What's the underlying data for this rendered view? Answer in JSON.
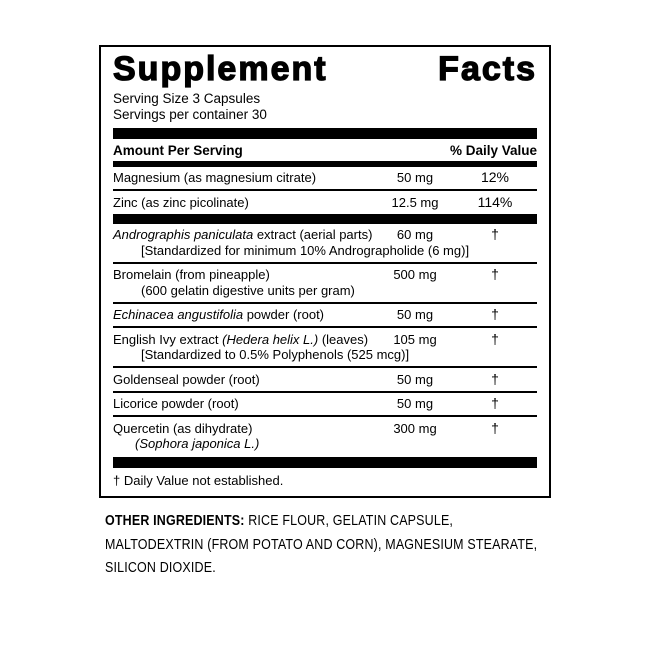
{
  "colors": {
    "text": "#000000",
    "panel_border": "#000000",
    "background": "#ffffff"
  },
  "label": {
    "title": "Supplement Facts",
    "serving_size": "Serving Size 3 Capsules",
    "servings_per_container": "Servings per container 30",
    "col_amount": "Amount Per Serving",
    "col_dv": "% Daily Value",
    "rows": [
      {
        "name": "Magnesium (as magnesium citrate)",
        "amount": "50 mg",
        "dv": "12%"
      },
      {
        "name": "Zinc (as zinc picolinate)",
        "amount": "12.5 mg",
        "dv": "114%"
      },
      {
        "name_italic": "Andrographis paniculata",
        "name_rest": " extract (aerial parts)",
        "amount": "60 mg",
        "dv": "†",
        "subline": "[Standardized for minimum 10% Andrographolide (6 mg)]"
      },
      {
        "name": "Bromelain (from pineapple)",
        "amount": "500 mg",
        "dv": "†",
        "subline": "(600 gelatin digestive units per gram)"
      },
      {
        "name_italic": "Echinacea angustifolia",
        "name_rest": " powder (root)",
        "amount": "50 mg",
        "dv": "†"
      },
      {
        "name_pre": "English Ivy extract ",
        "name_italic": "(Hedera helix L.)",
        "name_post": " (leaves)",
        "amount": "105 mg",
        "dv": "†",
        "subline": "[Standardized to 0.5% Polyphenols (525 mcg)]"
      },
      {
        "name": "Goldenseal powder (root)",
        "amount": "50 mg",
        "dv": "†"
      },
      {
        "name": "Licorice powder (root)",
        "amount": "50 mg",
        "dv": "†"
      },
      {
        "name": "Quercetin (as dihydrate)",
        "amount": "300 mg",
        "dv": "†",
        "subline": "(Sophora japonica L.)"
      }
    ],
    "footnote": "† Daily Value not established."
  },
  "other": {
    "label": "OTHER INGREDIENTS:",
    "line1": "RICE FLOUR, GELATIN CAPSULE,",
    "line2": "MALTODEXTRIN (FROM POTATO AND CORN), MAGNESIUM STEARATE,",
    "line3": "SILICON DIOXIDE."
  }
}
